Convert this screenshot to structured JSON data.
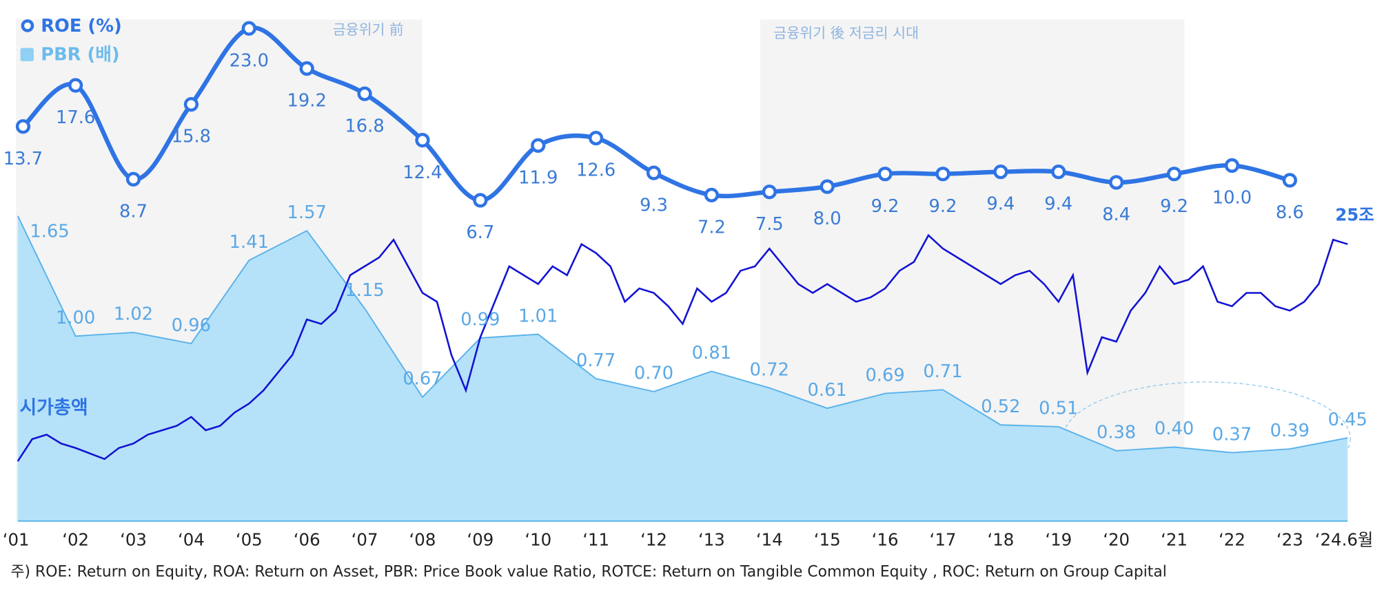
{
  "chart_data": {
    "type": "combo",
    "categories": [
      "‘01",
      "‘02",
      "‘03",
      "‘04",
      "‘05",
      "‘06",
      "‘07",
      "‘08",
      "‘09",
      "‘10",
      "‘11",
      "‘12",
      "‘13",
      "‘14",
      "‘15",
      "‘16",
      "‘17",
      "‘18",
      "‘19",
      "‘20",
      "‘21",
      "‘22",
      "‘23",
      "‘24.6월"
    ],
    "series": [
      {
        "name": "ROE (%)",
        "type": "line",
        "color": "#2f74e4",
        "values": [
          13.7,
          17.6,
          8.7,
          15.8,
          23.0,
          19.2,
          16.8,
          12.4,
          6.7,
          11.9,
          12.6,
          9.3,
          7.2,
          7.5,
          8.0,
          9.2,
          9.2,
          9.4,
          9.4,
          8.4,
          9.2,
          10.0,
          8.6,
          null
        ],
        "value_labels": [
          "13.7",
          "17.6",
          "8.7",
          "15.8",
          "23.0",
          "19.2",
          "16.8",
          "12.4",
          "6.7",
          "11.9",
          "12.6",
          "9.3",
          "7.2",
          "7.5",
          "8.0",
          "9.2",
          "9.2",
          "9.4",
          "9.4",
          "8.4",
          "9.2",
          "10.0",
          "8.6",
          null
        ]
      },
      {
        "name": "PBR (배)",
        "type": "area",
        "color": "#5ab2ea",
        "values": [
          1.65,
          1.0,
          1.02,
          0.96,
          1.41,
          1.57,
          1.15,
          0.67,
          0.99,
          1.01,
          0.77,
          0.7,
          0.81,
          0.72,
          0.61,
          0.69,
          0.71,
          0.52,
          0.51,
          0.38,
          0.4,
          0.37,
          0.39,
          0.45
        ],
        "value_labels": [
          "1.65",
          "1.00",
          "1.02",
          "0.96",
          "1.41",
          "1.57",
          "1.15",
          "0.67",
          "0.99",
          "1.01",
          "0.77",
          "0.70",
          "0.81",
          "0.72",
          "0.61",
          "0.69",
          "0.71",
          "0.52",
          "0.51",
          "0.38",
          "0.40",
          "0.37",
          "0.39",
          "0.45"
        ]
      }
    ],
    "market_cap": {
      "name": "시가총액",
      "color": "#1212d4",
      "end_label": "25조",
      "x": [
        2001,
        2001.25,
        2001.5,
        2001.75,
        2002,
        2002.25,
        2002.5,
        2002.75,
        2003,
        2003.25,
        2003.5,
        2003.75,
        2004,
        2004.25,
        2004.5,
        2004.75,
        2005,
        2005.25,
        2005.5,
        2005.75,
        2006,
        2006.25,
        2006.5,
        2006.75,
        2007,
        2007.25,
        2007.5,
        2007.75,
        2008,
        2008.25,
        2008.5,
        2008.75,
        2009,
        2009.25,
        2009.5,
        2009.75,
        2010,
        2010.25,
        2010.5,
        2010.75,
        2011,
        2011.25,
        2011.5,
        2011.75,
        2012,
        2012.25,
        2012.5,
        2012.75,
        2013,
        2013.25,
        2013.5,
        2013.75,
        2014,
        2014.25,
        2014.5,
        2014.75,
        2015,
        2015.25,
        2015.5,
        2015.75,
        2016,
        2016.25,
        2016.5,
        2016.75,
        2017,
        2017.25,
        2017.5,
        2017.75,
        2018,
        2018.25,
        2018.5,
        2018.75,
        2019,
        2019.25,
        2019.5,
        2019.75,
        2020,
        2020.25,
        2020.5,
        2020.75,
        2021,
        2021.25,
        2021.5,
        2021.75,
        2022,
        2022.25,
        2022.5,
        2022.75,
        2023,
        2023.25,
        2023.5,
        2023.75,
        2024
      ],
      "values": [
        5.4,
        7.4,
        7.8,
        7.0,
        6.6,
        6.1,
        5.6,
        6.6,
        7.0,
        7.8,
        8.2,
        8.6,
        9.4,
        8.2,
        8.6,
        9.8,
        10.6,
        11.8,
        13.4,
        15.0,
        18.2,
        17.8,
        19.0,
        22.2,
        23.0,
        23.8,
        25.4,
        23.0,
        20.6,
        19.8,
        15.0,
        11.8,
        16.6,
        19.8,
        23.0,
        22.2,
        21.4,
        23.0,
        22.2,
        25.0,
        24.2,
        23.0,
        19.8,
        21.0,
        20.6,
        19.4,
        17.8,
        21.0,
        19.8,
        20.6,
        22.6,
        23.0,
        24.6,
        23.0,
        21.4,
        20.6,
        21.4,
        20.6,
        19.8,
        20.2,
        21.0,
        22.6,
        23.4,
        25.8,
        24.6,
        23.8,
        23.0,
        22.2,
        21.4,
        22.2,
        22.6,
        21.4,
        19.8,
        22.2,
        13.4,
        16.6,
        16.2,
        19.0,
        20.6,
        23.0,
        21.4,
        21.8,
        23.0,
        19.8,
        19.4,
        20.6,
        20.6,
        19.4,
        19.0,
        19.8,
        21.4,
        25.4,
        25.0
      ]
    },
    "annotations": [
      "금융위기 前",
      "금융위기 後 저금리 시대"
    ],
    "footnote": "주) ROE: Return on Equity, ROA: Return on Asset, PBR: Price Book value Ratio, ROTCE: Return on Tangible Common Equity , ROC: Return on Group Capital"
  }
}
